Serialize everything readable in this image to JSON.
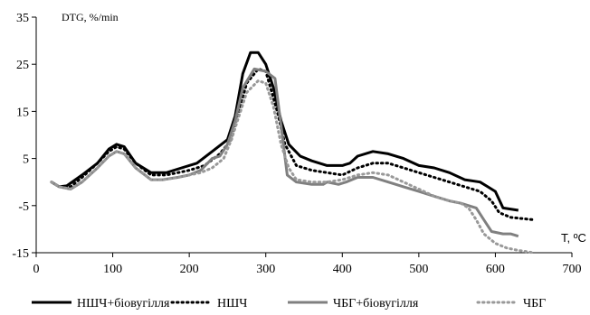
{
  "chart_data": {
    "type": "line",
    "ylabel": "DTG, %/min",
    "xlabel": "T, ºC",
    "xlim": [
      0,
      700
    ],
    "ylim": [
      -15,
      35
    ],
    "xticks": [
      0,
      100,
      200,
      300,
      400,
      500,
      600,
      700
    ],
    "yticks": [
      -15,
      -5,
      5,
      15,
      25,
      35
    ],
    "legend_position": "bottom",
    "series": [
      {
        "name": "НШЧ+біовугілля",
        "color": "#000000",
        "style": "solid",
        "points": [
          [
            20,
            0
          ],
          [
            30,
            -1
          ],
          [
            40,
            -0.8
          ],
          [
            60,
            1.5
          ],
          [
            80,
            4
          ],
          [
            95,
            7
          ],
          [
            105,
            8
          ],
          [
            115,
            7.5
          ],
          [
            130,
            4
          ],
          [
            150,
            2
          ],
          [
            170,
            2
          ],
          [
            190,
            3
          ],
          [
            210,
            4
          ],
          [
            230,
            6.5
          ],
          [
            250,
            9
          ],
          [
            260,
            14
          ],
          [
            270,
            23
          ],
          [
            280,
            27.5
          ],
          [
            290,
            27.5
          ],
          [
            300,
            25
          ],
          [
            310,
            20
          ],
          [
            320,
            13
          ],
          [
            330,
            8
          ],
          [
            345,
            5.5
          ],
          [
            360,
            4.5
          ],
          [
            380,
            3.5
          ],
          [
            400,
            3.5
          ],
          [
            410,
            4
          ],
          [
            420,
            5.5
          ],
          [
            440,
            6.5
          ],
          [
            460,
            6
          ],
          [
            480,
            5
          ],
          [
            500,
            3.5
          ],
          [
            520,
            3
          ],
          [
            540,
            2
          ],
          [
            560,
            0.5
          ],
          [
            580,
            0
          ],
          [
            590,
            -1
          ],
          [
            600,
            -2
          ],
          [
            610,
            -5.5
          ],
          [
            630,
            -6
          ]
        ]
      },
      {
        "name": "НШЧ",
        "color": "#000000",
        "style": "dotted",
        "points": [
          [
            20,
            0
          ],
          [
            30,
            -1
          ],
          [
            45,
            -1
          ],
          [
            60,
            1
          ],
          [
            80,
            4
          ],
          [
            95,
            6.5
          ],
          [
            105,
            7.5
          ],
          [
            115,
            7
          ],
          [
            130,
            4
          ],
          [
            150,
            1.5
          ],
          [
            170,
            1.5
          ],
          [
            200,
            2.5
          ],
          [
            220,
            3.5
          ],
          [
            240,
            6
          ],
          [
            255,
            9
          ],
          [
            265,
            15
          ],
          [
            275,
            21
          ],
          [
            290,
            24
          ],
          [
            300,
            23.5
          ],
          [
            315,
            15
          ],
          [
            325,
            8
          ],
          [
            340,
            3.5
          ],
          [
            360,
            2.5
          ],
          [
            380,
            2
          ],
          [
            400,
            1.5
          ],
          [
            420,
            3
          ],
          [
            440,
            4
          ],
          [
            460,
            4
          ],
          [
            480,
            3
          ],
          [
            500,
            2
          ],
          [
            520,
            1
          ],
          [
            540,
            0
          ],
          [
            560,
            -1
          ],
          [
            580,
            -2
          ],
          [
            595,
            -4
          ],
          [
            605,
            -6.5
          ],
          [
            620,
            -7.5
          ],
          [
            650,
            -8
          ]
        ]
      },
      {
        "name": "ЧБГ+біовугілля",
        "color": "#808080",
        "style": "solid",
        "points": [
          [
            20,
            0
          ],
          [
            30,
            -1
          ],
          [
            45,
            -1.5
          ],
          [
            60,
            0
          ],
          [
            80,
            3
          ],
          [
            95,
            5.5
          ],
          [
            105,
            6.5
          ],
          [
            115,
            6
          ],
          [
            130,
            3
          ],
          [
            150,
            0.5
          ],
          [
            165,
            0.5
          ],
          [
            185,
            1
          ],
          [
            200,
            1.5
          ],
          [
            215,
            2.5
          ],
          [
            230,
            5
          ],
          [
            240,
            5.5
          ],
          [
            250,
            8
          ],
          [
            260,
            13
          ],
          [
            270,
            20
          ],
          [
            285,
            24
          ],
          [
            300,
            23.5
          ],
          [
            312,
            22
          ],
          [
            320,
            12
          ],
          [
            328,
            1.5
          ],
          [
            340,
            0
          ],
          [
            360,
            -0.5
          ],
          [
            375,
            -0.5
          ],
          [
            380,
            0
          ],
          [
            395,
            -0.5
          ],
          [
            405,
            0
          ],
          [
            420,
            1
          ],
          [
            440,
            1
          ],
          [
            460,
            0
          ],
          [
            480,
            -1
          ],
          [
            500,
            -2
          ],
          [
            520,
            -3
          ],
          [
            540,
            -4
          ],
          [
            555,
            -4.5
          ],
          [
            565,
            -5
          ],
          [
            575,
            -5.5
          ],
          [
            585,
            -8
          ],
          [
            595,
            -10.5
          ],
          [
            610,
            -11
          ],
          [
            620,
            -11
          ],
          [
            630,
            -11.5
          ]
        ]
      },
      {
        "name": "ЧБГ",
        "color": "#999999",
        "style": "dotted",
        "points": [
          [
            20,
            0
          ],
          [
            30,
            -1
          ],
          [
            45,
            -1.5
          ],
          [
            60,
            0
          ],
          [
            80,
            3
          ],
          [
            95,
            5.5
          ],
          [
            105,
            6.5
          ],
          [
            115,
            6
          ],
          [
            130,
            3
          ],
          [
            150,
            0.5
          ],
          [
            165,
            0.5
          ],
          [
            185,
            1
          ],
          [
            200,
            1.5
          ],
          [
            215,
            2
          ],
          [
            230,
            3
          ],
          [
            245,
            5
          ],
          [
            255,
            9
          ],
          [
            265,
            14
          ],
          [
            275,
            19
          ],
          [
            290,
            21.5
          ],
          [
            300,
            21
          ],
          [
            310,
            16
          ],
          [
            320,
            8
          ],
          [
            330,
            3
          ],
          [
            340,
            0.5
          ],
          [
            360,
            0
          ],
          [
            380,
            0
          ],
          [
            400,
            0.5
          ],
          [
            420,
            1.5
          ],
          [
            440,
            2
          ],
          [
            460,
            1.5
          ],
          [
            480,
            0
          ],
          [
            500,
            -1.5
          ],
          [
            520,
            -3
          ],
          [
            540,
            -4
          ],
          [
            555,
            -4.5
          ],
          [
            565,
            -5.5
          ],
          [
            575,
            -8
          ],
          [
            585,
            -11
          ],
          [
            600,
            -13
          ],
          [
            615,
            -14
          ],
          [
            630,
            -14.5
          ],
          [
            650,
            -15
          ]
        ]
      }
    ]
  }
}
